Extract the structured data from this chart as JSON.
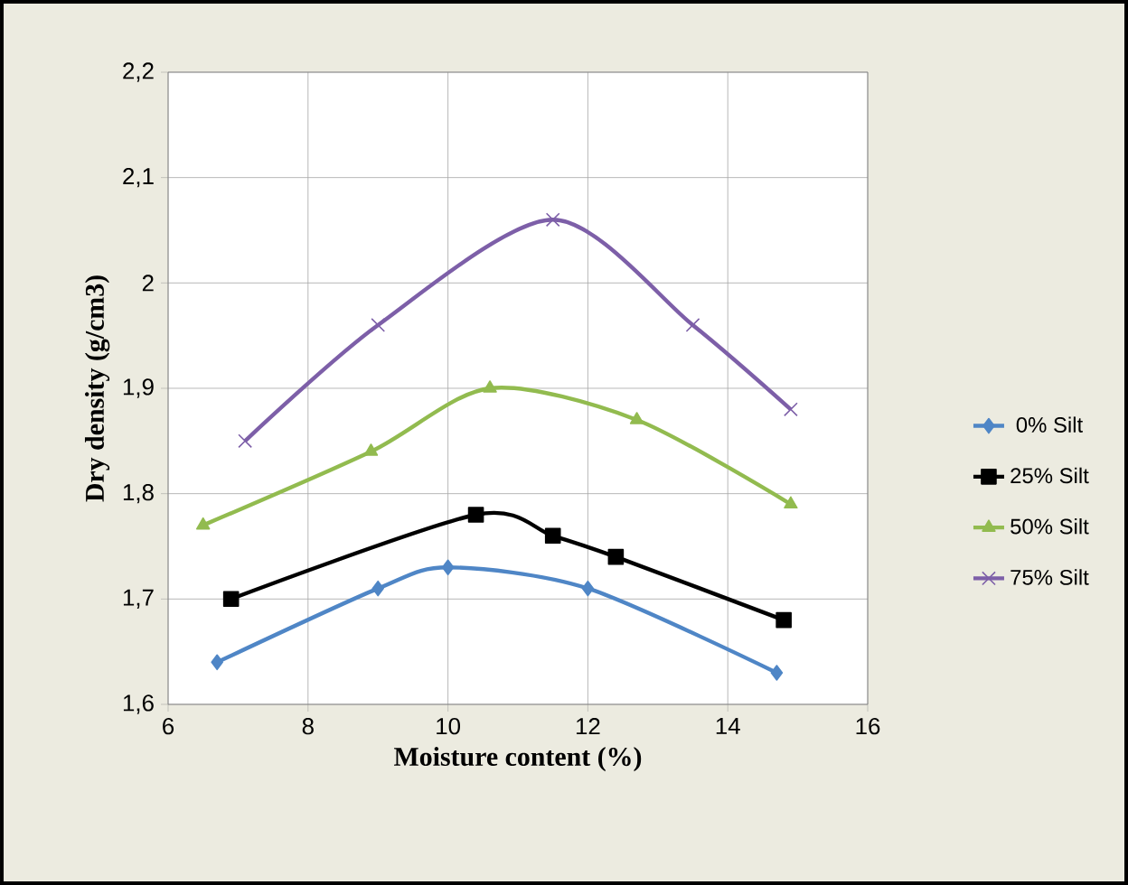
{
  "chart_data": {
    "type": "line",
    "xlabel": "Moisture content (%)",
    "ylabel": "Dry density (g/cm3)",
    "xlim": [
      6,
      16
    ],
    "xticks": [
      6,
      8,
      10,
      12,
      14,
      16
    ],
    "ylim": [
      1.6,
      2.2
    ],
    "yticks": [
      {
        "value": 1.6,
        "label": "1,6"
      },
      {
        "value": 1.7,
        "label": "1,7"
      },
      {
        "value": 1.8,
        "label": "1,8"
      },
      {
        "value": 1.9,
        "label": "1,9"
      },
      {
        "value": 2,
        "label": "2"
      },
      {
        "value": 2.1,
        "label": "2,1"
      },
      {
        "value": 2.2,
        "label": "2,2"
      }
    ],
    "grid": true,
    "legend": "right",
    "series": [
      {
        "name": "0% Silt",
        "color": "#4f86c6",
        "marker": "diamond",
        "x": [
          6.7,
          9.0,
          10.0,
          12.0,
          14.7
        ],
        "values": [
          1.64,
          1.71,
          1.73,
          1.71,
          1.63
        ]
      },
      {
        "name": "25% Silt",
        "color": "#000000",
        "marker": "square",
        "x": [
          6.9,
          10.4,
          11.5,
          12.4,
          14.8
        ],
        "values": [
          1.7,
          1.78,
          1.76,
          1.74,
          1.68
        ]
      },
      {
        "name": "50% Silt",
        "color": "#92bb4f",
        "marker": "triangle",
        "x": [
          6.5,
          8.9,
          10.6,
          12.7,
          14.9
        ],
        "values": [
          1.77,
          1.84,
          1.9,
          1.87,
          1.79
        ]
      },
      {
        "name": "75% Silt",
        "color": "#7d5fa8",
        "marker": "cross",
        "x": [
          7.1,
          9.0,
          11.5,
          13.5,
          14.9
        ],
        "values": [
          1.85,
          1.96,
          2.06,
          1.96,
          1.88
        ]
      }
    ]
  }
}
